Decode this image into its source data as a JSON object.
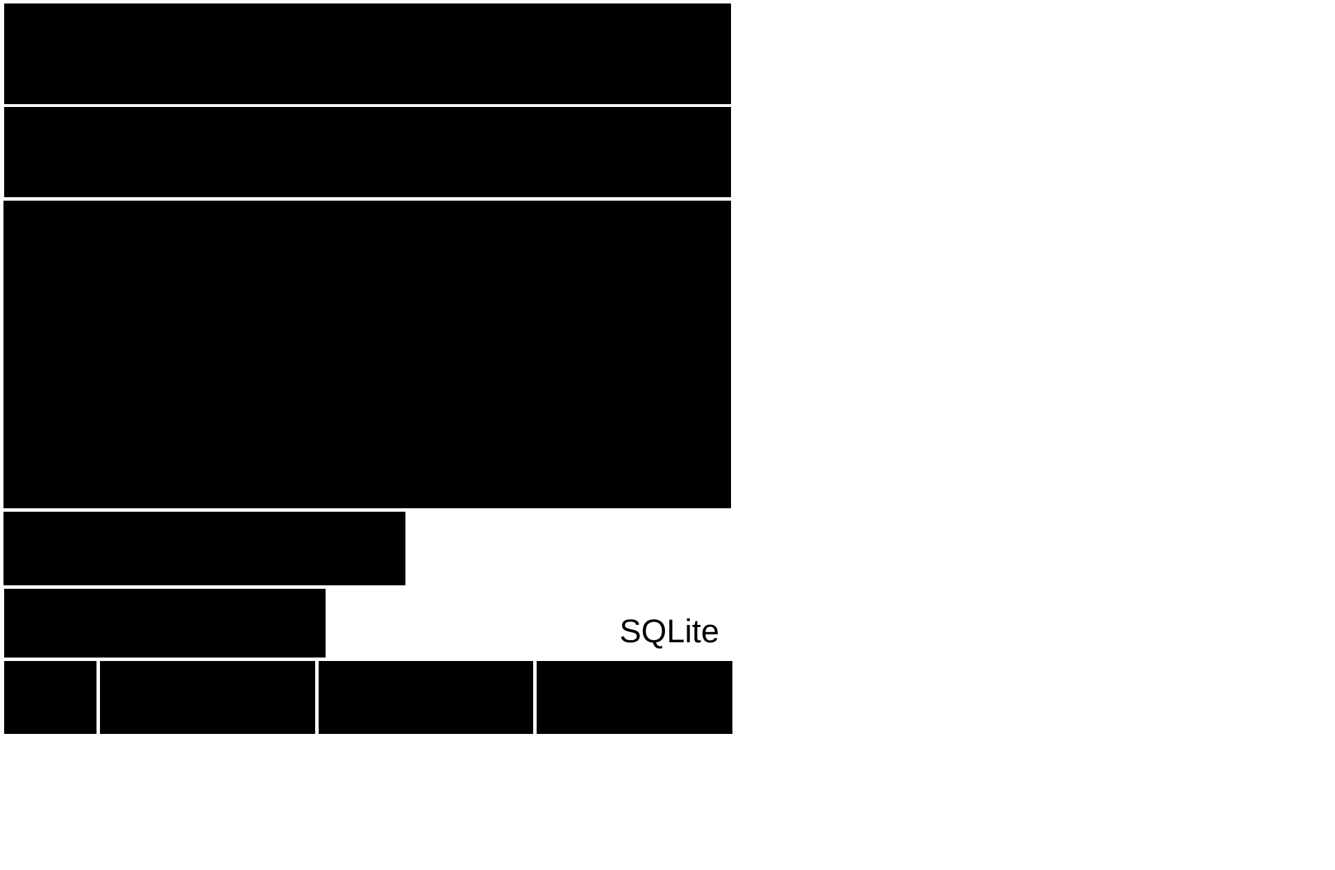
{
  "label": {
    "text": "SQLite"
  },
  "colors": {
    "background": "#ffffff",
    "block_fill": "#000000",
    "text": "#000000"
  }
}
